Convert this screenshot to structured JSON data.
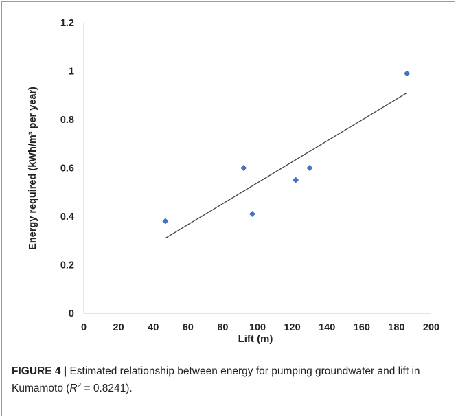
{
  "chart_data": {
    "type": "scatter",
    "xlabel": "Lift (m)",
    "ylabel": "Energy required (kWh/m³ per year)",
    "xlim": [
      0,
      200
    ],
    "ylim": [
      0,
      1.2
    ],
    "x_ticks": [
      "0",
      "20",
      "40",
      "60",
      "80",
      "100",
      "120",
      "140",
      "160",
      "180",
      "200"
    ],
    "y_ticks": [
      "0",
      "0.2",
      "0.4",
      "0.6",
      "0.8",
      "1",
      "1.2"
    ],
    "grid": false,
    "points": [
      {
        "x": 47,
        "y": 0.38
      },
      {
        "x": 92,
        "y": 0.6
      },
      {
        "x": 97,
        "y": 0.41
      },
      {
        "x": 122,
        "y": 0.55
      },
      {
        "x": 130,
        "y": 0.6
      },
      {
        "x": 186,
        "y": 0.99
      }
    ],
    "trendline": {
      "x": [
        47,
        186
      ],
      "y": [
        0.31,
        0.91
      ]
    },
    "marker_color": "#4472c4",
    "trendline_color": "#404040"
  },
  "caption": {
    "label": "FIGURE 4 |",
    "text_before": " Estimated relationship between energy for pumping groundwater and lift in Kumamoto (",
    "r_symbol": "R",
    "r_exponent": "2",
    "text_after": " = 0.8241)."
  }
}
